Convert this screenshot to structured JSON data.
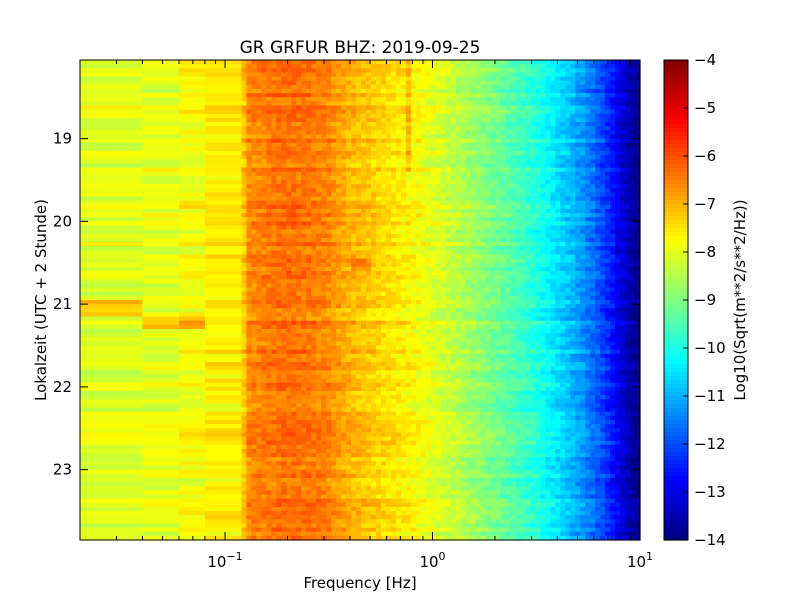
{
  "chart_data": {
    "type": "heatmap",
    "title": "GR GRFUR BHZ: 2019-09-25",
    "xlabel": "Frequency [Hz]",
    "ylabel": "Lokalzeit (UTC + 2 Stunde)",
    "x_scale": "log",
    "xlim": [
      0.02,
      10
    ],
    "ylim": [
      23.85,
      18.05
    ],
    "y_inverted": true,
    "x_ticks": [
      {
        "value": 0.1,
        "base": "10",
        "exp": "−1"
      },
      {
        "value": 1,
        "base": "10",
        "exp": "0"
      },
      {
        "value": 10,
        "base": "10",
        "exp": "1"
      }
    ],
    "y_ticks": [
      {
        "value": 19,
        "label": "19"
      },
      {
        "value": 20,
        "label": "20"
      },
      {
        "value": 21,
        "label": "21"
      },
      {
        "value": 22,
        "label": "22"
      },
      {
        "value": 23,
        "label": "23"
      }
    ],
    "colorbar": {
      "label": "Log10(Sqrt(m**2/s**2/Hz))",
      "colormap": "jet",
      "range": [
        -14,
        -4
      ],
      "ticks": [
        {
          "value": -4,
          "label": "−4"
        },
        {
          "value": -5,
          "label": "−5"
        },
        {
          "value": -6,
          "label": "−6"
        },
        {
          "value": -7,
          "label": "−7"
        },
        {
          "value": -8,
          "label": "−8"
        },
        {
          "value": -9,
          "label": "−9"
        },
        {
          "value": -10,
          "label": "−10"
        },
        {
          "value": -11,
          "label": "−11"
        },
        {
          "value": -12,
          "label": "−12"
        },
        {
          "value": -13,
          "label": "−13"
        },
        {
          "value": -14,
          "label": "−14"
        }
      ]
    },
    "time_start": 18.05,
    "time_end": 23.85,
    "time_step": 0.05,
    "frequency_profile": [
      {
        "f": 0.02,
        "v": -8.0
      },
      {
        "f": 0.04,
        "v": -8.1
      },
      {
        "f": 0.06,
        "v": -7.9
      },
      {
        "f": 0.08,
        "v": -7.7
      },
      {
        "f": 0.12,
        "v": -7.5
      },
      {
        "f": 0.13,
        "v": -6.6
      },
      {
        "f": 0.2,
        "v": -6.3
      },
      {
        "f": 0.3,
        "v": -6.5
      },
      {
        "f": 0.4,
        "v": -7.0
      },
      {
        "f": 0.6,
        "v": -7.4
      },
      {
        "f": 0.8,
        "v": -7.7
      },
      {
        "f": 1.0,
        "v": -8.0
      },
      {
        "f": 1.5,
        "v": -8.6
      },
      {
        "f": 2.0,
        "v": -9.1
      },
      {
        "f": 3.0,
        "v": -9.8
      },
      {
        "f": 4.0,
        "v": -10.5
      },
      {
        "f": 5.0,
        "v": -11.1
      },
      {
        "f": 6.0,
        "v": -11.7
      },
      {
        "f": 7.0,
        "v": -12.3
      },
      {
        "f": 8.0,
        "v": -13.0
      },
      {
        "f": 9.0,
        "v": -13.6
      },
      {
        "f": 10.0,
        "v": -14.0
      }
    ],
    "features": [
      {
        "t_start": 20.95,
        "t_end": 21.15,
        "f_start": 0.02,
        "f_end": 0.04,
        "delta": 0.9
      },
      {
        "t_start": 21.1,
        "t_end": 21.3,
        "f_start": 0.04,
        "f_end": 0.08,
        "delta": 0.7
      },
      {
        "t_start": 18.0,
        "t_end": 19.4,
        "f_start": 0.76,
        "f_end": 0.8,
        "delta": 0.6
      },
      {
        "t_start": 20.45,
        "t_end": 20.6,
        "f_start": 0.4,
        "f_end": 0.5,
        "delta": 0.5
      }
    ]
  }
}
